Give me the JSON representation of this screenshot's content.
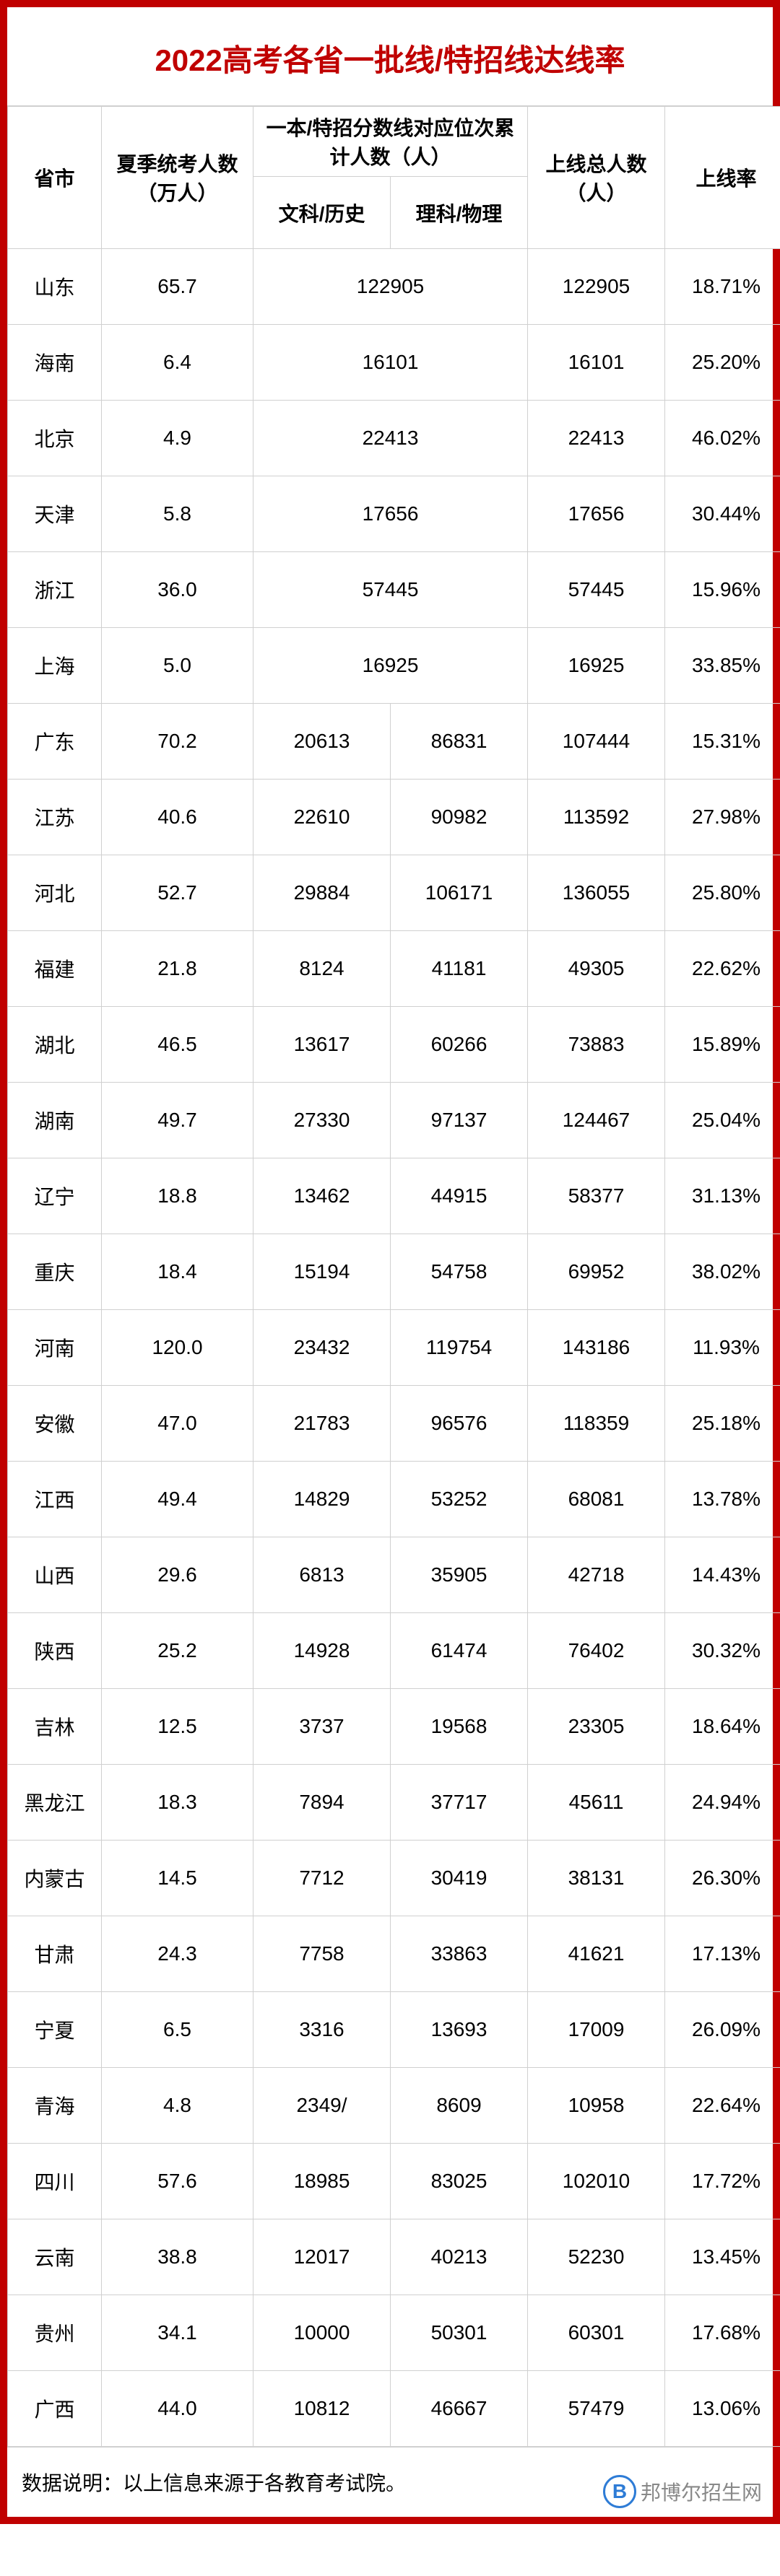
{
  "title": "2022高考各省一批线/特招线达线率",
  "headers": {
    "province": "省市",
    "summer_total": "夏季统考人数（万人）",
    "score_line_group": "一本/特招分数线对应位次累计人数（人）",
    "arts": "文科/历史",
    "science": "理科/物理",
    "qualified_total": "上线总人数（人）",
    "rate": "上线率"
  },
  "footer": "数据说明：以上信息来源于各教育考试院。",
  "watermark": "邦博尔招生网",
  "watermark_icon": "B",
  "colors": {
    "border": "#c00000",
    "title": "#c00000",
    "cell_border": "#d0d0d0",
    "text": "#000000",
    "watermark_icon": "#2e7cd6",
    "watermark_text": "#888888"
  },
  "rows": [
    {
      "province": "山东",
      "total": "65.7",
      "merged": "122905",
      "arts": "",
      "science": "",
      "qualified": "122905",
      "rate": "18.71%"
    },
    {
      "province": "海南",
      "total": "6.4",
      "merged": "16101",
      "arts": "",
      "science": "",
      "qualified": "16101",
      "rate": "25.20%"
    },
    {
      "province": "北京",
      "total": "4.9",
      "merged": "22413",
      "arts": "",
      "science": "",
      "qualified": "22413",
      "rate": "46.02%"
    },
    {
      "province": "天津",
      "total": "5.8",
      "merged": "17656",
      "arts": "",
      "science": "",
      "qualified": "17656",
      "rate": "30.44%"
    },
    {
      "province": "浙江",
      "total": "36.0",
      "merged": "57445",
      "arts": "",
      "science": "",
      "qualified": "57445",
      "rate": "15.96%"
    },
    {
      "province": "上海",
      "total": "5.0",
      "merged": "16925",
      "arts": "",
      "science": "",
      "qualified": "16925",
      "rate": "33.85%"
    },
    {
      "province": "广东",
      "total": "70.2",
      "merged": "",
      "arts": "20613",
      "science": "86831",
      "qualified": "107444",
      "rate": "15.31%"
    },
    {
      "province": "江苏",
      "total": "40.6",
      "merged": "",
      "arts": "22610",
      "science": "90982",
      "qualified": "113592",
      "rate": "27.98%"
    },
    {
      "province": "河北",
      "total": "52.7",
      "merged": "",
      "arts": "29884",
      "science": "106171",
      "qualified": "136055",
      "rate": "25.80%"
    },
    {
      "province": "福建",
      "total": "21.8",
      "merged": "",
      "arts": "8124",
      "science": "41181",
      "qualified": "49305",
      "rate": "22.62%"
    },
    {
      "province": "湖北",
      "total": "46.5",
      "merged": "",
      "arts": "13617",
      "science": "60266",
      "qualified": "73883",
      "rate": "15.89%"
    },
    {
      "province": "湖南",
      "total": "49.7",
      "merged": "",
      "arts": "27330",
      "science": "97137",
      "qualified": "124467",
      "rate": "25.04%"
    },
    {
      "province": "辽宁",
      "total": "18.8",
      "merged": "",
      "arts": "13462",
      "science": "44915",
      "qualified": "58377",
      "rate": "31.13%"
    },
    {
      "province": "重庆",
      "total": "18.4",
      "merged": "",
      "arts": "15194",
      "science": "54758",
      "qualified": "69952",
      "rate": "38.02%"
    },
    {
      "province": "河南",
      "total": "120.0",
      "merged": "",
      "arts": "23432",
      "science": "119754",
      "qualified": "143186",
      "rate": "11.93%"
    },
    {
      "province": "安徽",
      "total": "47.0",
      "merged": "",
      "arts": "21783",
      "science": "96576",
      "qualified": "118359",
      "rate": "25.18%"
    },
    {
      "province": "江西",
      "total": "49.4",
      "merged": "",
      "arts": "14829",
      "science": "53252",
      "qualified": "68081",
      "rate": "13.78%"
    },
    {
      "province": "山西",
      "total": "29.6",
      "merged": "",
      "arts": "6813",
      "science": "35905",
      "qualified": "42718",
      "rate": "14.43%"
    },
    {
      "province": "陕西",
      "total": "25.2",
      "merged": "",
      "arts": "14928",
      "science": "61474",
      "qualified": "76402",
      "rate": "30.32%"
    },
    {
      "province": "吉林",
      "total": "12.5",
      "merged": "",
      "arts": "3737",
      "science": "19568",
      "qualified": "23305",
      "rate": "18.64%"
    },
    {
      "province": "黑龙江",
      "total": "18.3",
      "merged": "",
      "arts": "7894",
      "science": "37717",
      "qualified": "45611",
      "rate": "24.94%"
    },
    {
      "province": "内蒙古",
      "total": "14.5",
      "merged": "",
      "arts": "7712",
      "science": "30419",
      "qualified": "38131",
      "rate": "26.30%"
    },
    {
      "province": "甘肃",
      "total": "24.3",
      "merged": "",
      "arts": "7758",
      "science": "33863",
      "qualified": "41621",
      "rate": "17.13%"
    },
    {
      "province": "宁夏",
      "total": "6.5",
      "merged": "",
      "arts": "3316",
      "science": "13693",
      "qualified": "17009",
      "rate": "26.09%"
    },
    {
      "province": "青海",
      "total": "4.8",
      "merged": "",
      "arts": "2349/",
      "science": "8609",
      "qualified": "10958",
      "rate": "22.64%"
    },
    {
      "province": "四川",
      "total": "57.6",
      "merged": "",
      "arts": "18985",
      "science": "83025",
      "qualified": "102010",
      "rate": "17.72%"
    },
    {
      "province": "云南",
      "total": "38.8",
      "merged": "",
      "arts": "12017",
      "science": "40213",
      "qualified": "52230",
      "rate": "13.45%"
    },
    {
      "province": "贵州",
      "total": "34.1",
      "merged": "",
      "arts": "10000",
      "science": "50301",
      "qualified": "60301",
      "rate": "17.68%"
    },
    {
      "province": "广西",
      "total": "44.0",
      "merged": "",
      "arts": "10812",
      "science": "46667",
      "qualified": "57479",
      "rate": "13.06%"
    }
  ]
}
